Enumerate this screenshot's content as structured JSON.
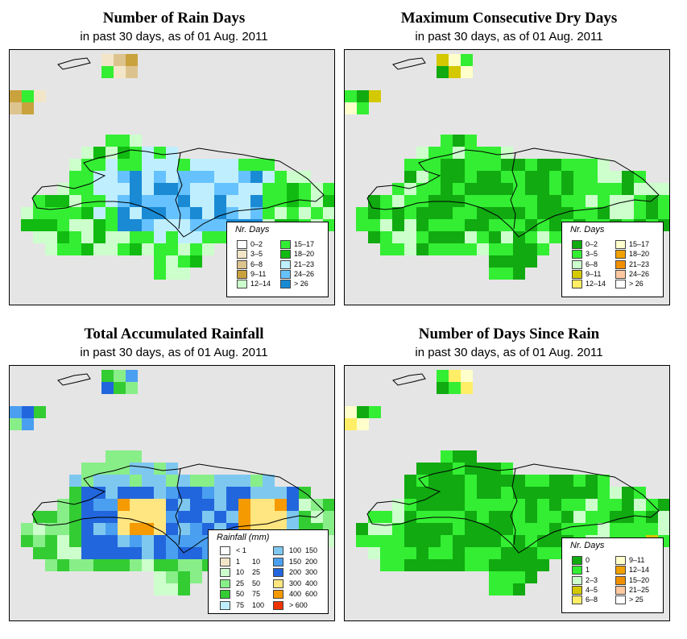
{
  "panels": [
    {
      "title": "Number of Rain Days",
      "subtitle": "in past 30 days, as of  01 Aug. 2011",
      "legend": {
        "title": "Nr. Days",
        "items": [
          {
            "label": "0–2",
            "color": "#ffffff"
          },
          {
            "label": "3–5",
            "color": "#f3e6c8"
          },
          {
            "label": "6–8",
            "color": "#ddc48e"
          },
          {
            "label": "9–11",
            "color": "#c9a23d"
          },
          {
            "label": "12–14",
            "color": "#ccffcc"
          },
          {
            "label": "15–17",
            "color": "#33ee33"
          },
          {
            "label": "18–20",
            "color": "#11bb11"
          },
          {
            "label": "21–23",
            "color": "#bfefff"
          },
          {
            "label": "24–26",
            "color": "#66c2ff"
          },
          {
            "label": "> 26",
            "color": "#1a8ad4"
          }
        ]
      }
    },
    {
      "title": "Maximum Consecutive Dry Days",
      "subtitle": "in past 30 days, as of  01 Aug. 2011",
      "legend": {
        "title": "Nr. Days",
        "items": [
          {
            "label": "0–2",
            "color": "#11aa11"
          },
          {
            "label": "3–5",
            "color": "#33ee33"
          },
          {
            "label": "6–8",
            "color": "#ccffcc"
          },
          {
            "label": "9–11",
            "color": "#d4c800"
          },
          {
            "label": "12–14",
            "color": "#ffee66"
          },
          {
            "label": "15–17",
            "color": "#ffffcc"
          },
          {
            "label": "18–20",
            "color": "#f0a000"
          },
          {
            "label": "21–23",
            "color": "#f09000"
          },
          {
            "label": "24–26",
            "color": "#ffc8a0"
          },
          {
            "label": "> 26",
            "color": "#ffffff"
          }
        ]
      }
    },
    {
      "title": "Total Accumulated Rainfall",
      "subtitle": "in past 30 days, as of  01 Aug. 2011",
      "legend": {
        "title": "Rainfall (mm)",
        "items": [
          {
            "lo": "< 1",
            "hi": "",
            "color": "#ffffff"
          },
          {
            "lo": "1",
            "hi": "10",
            "color": "#f3e6c8"
          },
          {
            "lo": "10",
            "hi": "25",
            "color": "#ccffcc"
          },
          {
            "lo": "25",
            "hi": "50",
            "color": "#88ee88"
          },
          {
            "lo": "50",
            "hi": "75",
            "color": "#33cc33"
          },
          {
            "lo": "75",
            "hi": "100",
            "color": "#bfefff"
          },
          {
            "lo": "100",
            "hi": "150",
            "color": "#7ec8f0"
          },
          {
            "lo": "150",
            "hi": "200",
            "color": "#4a9ff0"
          },
          {
            "lo": "200",
            "hi": "300",
            "color": "#2266dd"
          },
          {
            "lo": "300",
            "hi": "400",
            "color": "#ffe680"
          },
          {
            "lo": "400",
            "hi": "600",
            "color": "#f59a00"
          },
          {
            "lo": "> 600",
            "hi": "",
            "color": "#ee3300"
          }
        ]
      }
    },
    {
      "title": "Number of Days Since Rain",
      "subtitle": "in past 30 days, as of  01 Aug. 2011",
      "legend": {
        "title": "Nr. Days",
        "items": [
          {
            "label": "0",
            "color": "#11aa11"
          },
          {
            "label": "1",
            "color": "#33ee33"
          },
          {
            "label": "2–3",
            "color": "#ccffcc"
          },
          {
            "label": "4–5",
            "color": "#d4c800"
          },
          {
            "label": "6–8",
            "color": "#ffee66"
          },
          {
            "label": "9–11",
            "color": "#ffffcc"
          },
          {
            "label": "12–14",
            "color": "#f0a000"
          },
          {
            "label": "15–20",
            "color": "#f09000"
          },
          {
            "label": "21–25",
            "color": "#ffc8a0"
          },
          {
            "label": "> 25",
            "color": "#ffffff"
          }
        ]
      }
    }
  ]
}
